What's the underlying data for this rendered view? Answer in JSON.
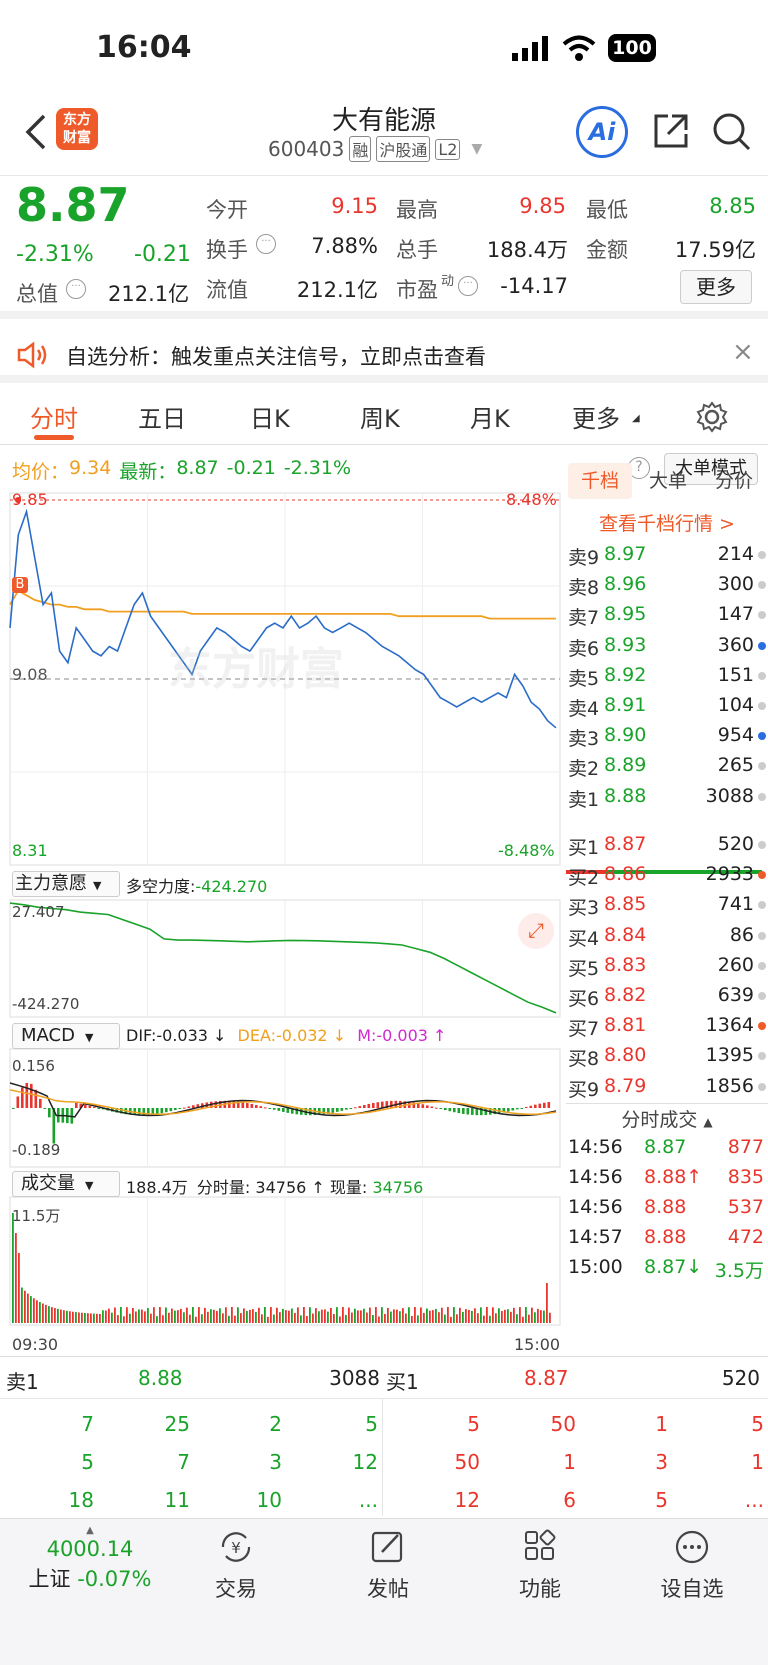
{
  "status": {
    "time": "16:04",
    "battery": "100"
  },
  "nav": {
    "logo_line1": "东方",
    "logo_line2": "财富",
    "title": "大有能源",
    "code": "600403",
    "badges": [
      "融",
      "沪股通",
      "L2"
    ],
    "ai_label": "Ai"
  },
  "quote": {
    "price": "8.87",
    "pct": "-2.31%",
    "chg": "-0.21",
    "items": {
      "open_l": "今开",
      "open_v": "9.15",
      "high_l": "最高",
      "high_v": "9.85",
      "low_l": "最低",
      "low_v": "8.85",
      "turn_l": "换手",
      "turn_v": "7.88%",
      "vol_l": "总手",
      "vol_v": "188.4万",
      "amt_l": "金额",
      "amt_v": "17.59亿",
      "mcap_l": "总值",
      "mcap_v": "212.1亿",
      "float_l": "流值",
      "float_v": "212.1亿",
      "pe_l": "市盈",
      "pe_sup": "动",
      "pe_v": "-14.17"
    },
    "more_btn": "更多"
  },
  "banner": {
    "text": "自选分析：触发重点关注信号，立即点击查看",
    "close": "×"
  },
  "tabs": [
    "分时",
    "五日",
    "日K",
    "周K",
    "月K",
    "更多"
  ],
  "info": {
    "avg_l": "均价：",
    "avg_v": "9.34",
    "last_l": "最新：",
    "last_v": "8.87",
    "chg": "-0.21",
    "pct": "-2.31%",
    "mode_btn": "大单模式",
    "help": "?"
  },
  "chart_data": {
    "type": "line",
    "title": "",
    "price_high": "9.85",
    "price_mid": "9.08",
    "price_low": "8.31",
    "pct_high": "8.48%",
    "pct_low": "-8.48%",
    "badge": "B",
    "time_start": "09:30",
    "time_end": "15:00",
    "watermark": "东方财富",
    "price": [
      9.3,
      9.7,
      9.8,
      9.6,
      9.4,
      9.45,
      9.2,
      9.15,
      9.3,
      9.25,
      9.2,
      9.18,
      9.22,
      9.2,
      9.3,
      9.4,
      9.45,
      9.35,
      9.3,
      9.25,
      9.2,
      9.15,
      9.1,
      9.2,
      9.25,
      9.3,
      9.28,
      9.25,
      9.22,
      9.2,
      9.25,
      9.3,
      9.32,
      9.3,
      9.35,
      9.3,
      9.32,
      9.35,
      9.3,
      9.28,
      9.3,
      9.32,
      9.3,
      9.28,
      9.25,
      9.22,
      9.2,
      9.18,
      9.15,
      9.12,
      9.1,
      9.05,
      9.0,
      8.98,
      8.96,
      8.98,
      9.0,
      8.98,
      9.0,
      9.02,
      9.0,
      9.1,
      9.05,
      8.98,
      8.95,
      8.9,
      8.87
    ],
    "avg": [
      9.4,
      9.46,
      9.44,
      9.42,
      9.41,
      9.4,
      9.4,
      9.39,
      9.39,
      9.38,
      9.38,
      9.38,
      9.37,
      9.37,
      9.37,
      9.37,
      9.37,
      9.37,
      9.37,
      9.37,
      9.37,
      9.37,
      9.36,
      9.36,
      9.36,
      9.36,
      9.36,
      9.36,
      9.36,
      9.36,
      9.36,
      9.36,
      9.36,
      9.36,
      9.36,
      9.36,
      9.36,
      9.36,
      9.36,
      9.36,
      9.36,
      9.36,
      9.36,
      9.36,
      9.36,
      9.36,
      9.36,
      9.35,
      9.35,
      9.35,
      9.35,
      9.35,
      9.35,
      9.35,
      9.35,
      9.35,
      9.35,
      9.35,
      9.34,
      9.34,
      9.34,
      9.34,
      9.34,
      9.34,
      9.34,
      9.34,
      9.34
    ],
    "zl_label": "主力意愿",
    "zl_text": "多空力度:",
    "zl_val": "-424.270",
    "zl_max": "27.407",
    "zl_min": "-424.270",
    "zl": [
      27,
      20,
      10,
      5,
      0,
      -10,
      -15,
      -20,
      -40,
      -60,
      -80,
      -120,
      -125,
      -125,
      -126,
      -128,
      -130,
      -132,
      -130,
      -128,
      -126,
      -127,
      -128,
      -130,
      -132,
      -134,
      -136,
      -140,
      -145,
      -160,
      -175,
      -200,
      -230,
      -260,
      -290,
      -320,
      -350,
      -380,
      -400,
      -424
    ],
    "macd_label": "MACD",
    "dif_l": "DIF:",
    "dif_v": "-0.033",
    "dea_l": "DEA:",
    "dea_v": "-0.032",
    "m_l": "M:",
    "m_v": "-0.003",
    "macd_max": "0.156",
    "macd_min": "-0.189",
    "vol_label": "成交量",
    "vol_total": "188.4万",
    "vol_fs_l": "分时量:",
    "vol_fs_v": "34756",
    "vol_now_l": "现量:",
    "vol_now_v": "34756",
    "vol_max": "11.5万"
  },
  "side_tabs": [
    "千档",
    "大单",
    "分价"
  ],
  "side_link": "查看千档行情 >",
  "asks": [
    {
      "l": "卖9",
      "p": "8.97",
      "v": "214"
    },
    {
      "l": "卖8",
      "p": "8.96",
      "v": "300"
    },
    {
      "l": "卖7",
      "p": "8.95",
      "v": "147"
    },
    {
      "l": "卖6",
      "p": "8.93",
      "v": "360"
    },
    {
      "l": "卖5",
      "p": "8.92",
      "v": "151"
    },
    {
      "l": "卖4",
      "p": "8.91",
      "v": "104"
    },
    {
      "l": "卖3",
      "p": "8.90",
      "v": "954"
    },
    {
      "l": "卖2",
      "p": "8.89",
      "v": "265"
    },
    {
      "l": "卖1",
      "p": "8.88",
      "v": "3088"
    }
  ],
  "bids": [
    {
      "l": "买1",
      "p": "8.87",
      "v": "520"
    },
    {
      "l": "买2",
      "p": "8.86",
      "v": "2933"
    },
    {
      "l": "买3",
      "p": "8.85",
      "v": "741"
    },
    {
      "l": "买4",
      "p": "8.84",
      "v": "86"
    },
    {
      "l": "买5",
      "p": "8.83",
      "v": "260"
    },
    {
      "l": "买6",
      "p": "8.82",
      "v": "639"
    },
    {
      "l": "买7",
      "p": "8.81",
      "v": "1364"
    },
    {
      "l": "买8",
      "p": "8.80",
      "v": "1395"
    },
    {
      "l": "买9",
      "p": "8.79",
      "v": "1856"
    }
  ],
  "ticks_title": "分时成交",
  "ticks": [
    {
      "t": "14:56",
      "p": "8.87",
      "v": "877"
    },
    {
      "t": "14:56",
      "p": "8.88↑",
      "v": "835"
    },
    {
      "t": "14:56",
      "p": "8.88",
      "v": "537"
    },
    {
      "t": "14:57",
      "p": "8.88",
      "v": "472"
    },
    {
      "t": "15:00",
      "p": "8.87↓",
      "v": "3.5万"
    }
  ],
  "book": {
    "ask_l": "卖1",
    "ask_p": "8.88",
    "ask_v": "3088",
    "bid_l": "买1",
    "bid_p": "8.87",
    "bid_v": "520",
    "ask_rows": [
      [
        "7",
        "25",
        "2",
        "5"
      ],
      [
        "5",
        "7",
        "3",
        "12"
      ],
      [
        "18",
        "11",
        "10",
        "..."
      ]
    ],
    "bid_rows": [
      [
        "5",
        "50",
        "1",
        "5"
      ],
      [
        "50",
        "1",
        "3",
        "1"
      ],
      [
        "12",
        "6",
        "5",
        "..."
      ]
    ]
  },
  "bottom": {
    "index_v": "4000.14",
    "index_name": "上证",
    "index_pct": "-0.07%",
    "items": [
      "交易",
      "发帖",
      "功能",
      "设自选"
    ]
  }
}
